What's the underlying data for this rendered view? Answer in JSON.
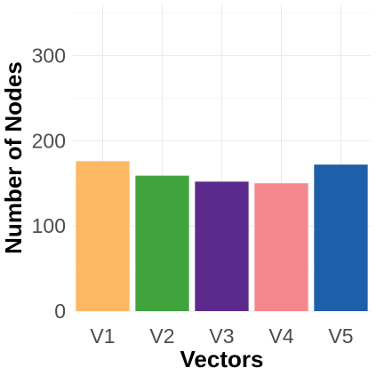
{
  "chart_data": {
    "type": "bar",
    "categories": [
      "V1",
      "V2",
      "V3",
      "V4",
      "V5"
    ],
    "values": [
      176,
      159,
      152,
      150,
      172
    ],
    "colors": [
      "#FDB863",
      "#41A33E",
      "#5C2A8C",
      "#F4878E",
      "#1D5FA8"
    ],
    "title": "",
    "xlabel": "Vectors",
    "ylabel": "Number of Nodes",
    "ylim": [
      0,
      360
    ],
    "yticks": [
      0,
      100,
      200,
      300
    ],
    "grid": true,
    "legend": "none"
  }
}
